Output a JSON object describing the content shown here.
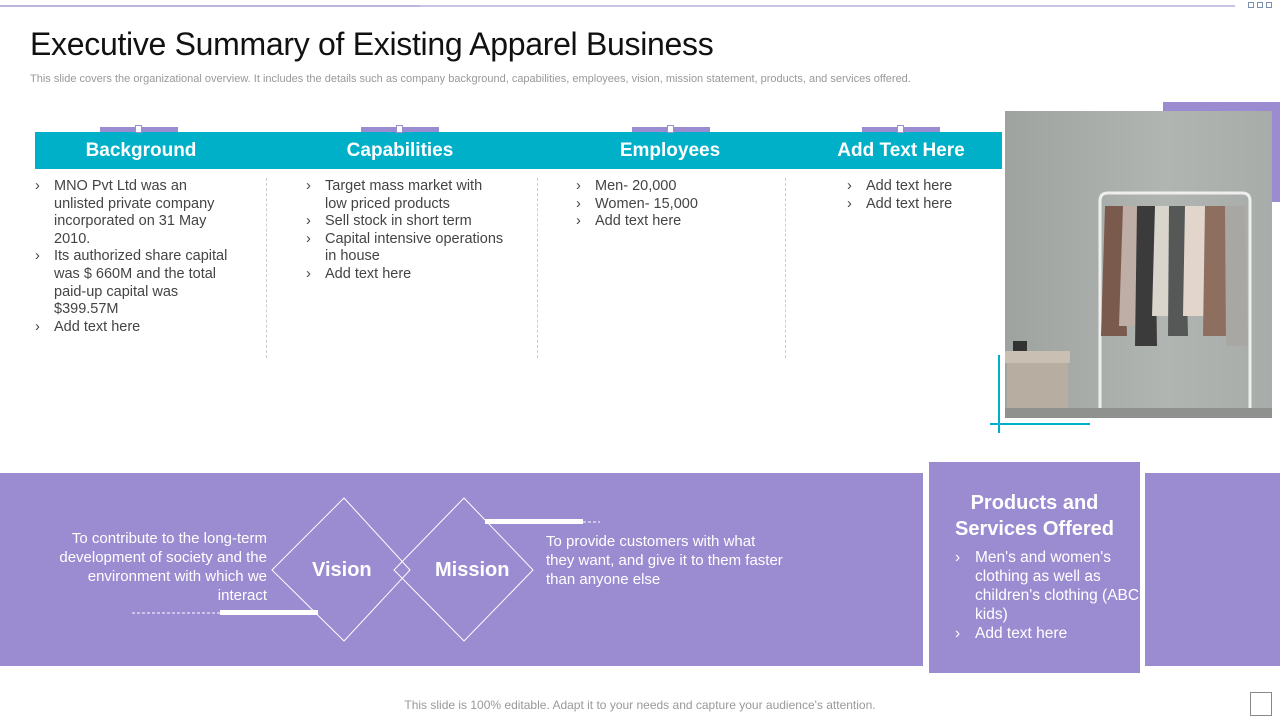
{
  "title": "Executive Summary of Existing Apparel Business",
  "subtitle": "This slide covers the organizational overview. It includes the details such as company background, capabilities, employees, vision,  mission statement, products, and services offered.",
  "columns": [
    {
      "heading": "Background",
      "items": [
        "MNO Pvt Ltd was an unlisted private company incorporated on 31 May 2010.",
        "Its authorized share capital was $ 660M and the total paid-up capital was $399.57M",
        "Add text here"
      ]
    },
    {
      "heading": "Capabilities",
      "items": [
        "Target mass market with low priced products",
        "Sell stock in short term",
        "Capital intensive operations in house",
        "Add text here"
      ]
    },
    {
      "heading": "Employees",
      "items": [
        "Men- 20,000",
        "Women- 15,000",
        "Add text here"
      ]
    },
    {
      "heading": "Add Text Here",
      "items": [
        "Add text here",
        "Add text here"
      ]
    }
  ],
  "vision": {
    "label": "Vision",
    "text": "To contribute to the long-term development of society and the environment with which we interact"
  },
  "mission": {
    "label": "Mission",
    "text": "To provide customers with what they want, and give it to them faster than anyone else"
  },
  "products": {
    "title": "Products and Services Offered",
    "items": [
      "Men's and women's clothing as well as children's clothing (ABC kids)",
      "Add text here"
    ]
  },
  "footer": "This slide is 100% editable. Adapt it to your needs and capture your audience's attention.",
  "colors": {
    "teal": "#00b0c8",
    "purple": "#9b8bd1"
  }
}
